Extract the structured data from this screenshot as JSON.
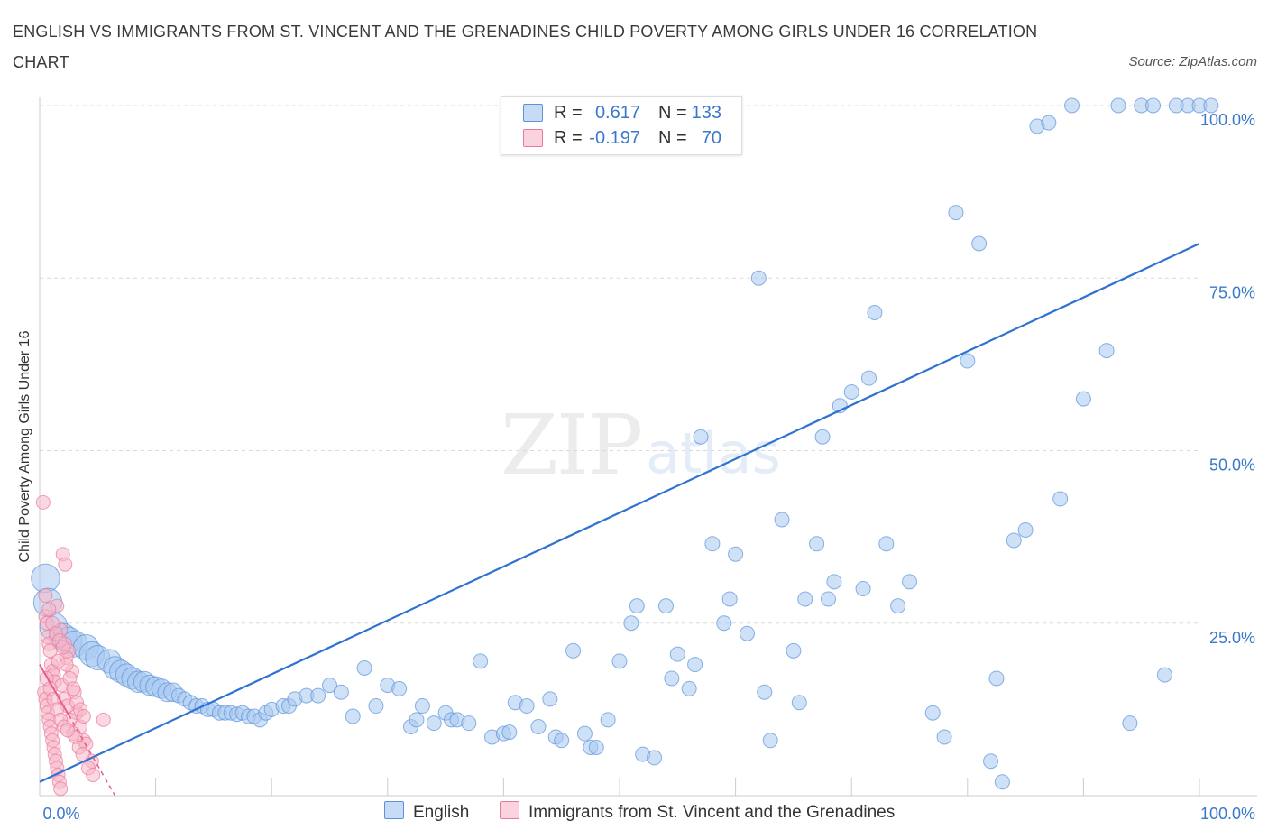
{
  "title": "ENGLISH VS IMMIGRANTS FROM ST. VINCENT AND THE GRENADINES CHILD POVERTY AMONG GIRLS UNDER 16 CORRELATION CHART",
  "source": "Source: ZipAtlas.com",
  "watermark": {
    "zip": "ZIP",
    "atlas": "atlas"
  },
  "legend": {
    "rows": [
      {
        "r_label": "R =",
        "r_value": "0.617",
        "n_label": "N =",
        "n_value": "133",
        "color": "#a8c8f0"
      },
      {
        "r_label": "R =",
        "r_value": "-0.197",
        "n_label": "N =",
        "n_value": "70",
        "color": "#f7b6c8"
      }
    ]
  },
  "bottom_legend": {
    "english": "English",
    "immigrants": "Immigrants from St. Vincent and the Grenadines"
  },
  "colors": {
    "blue_fill": "#a8c8f0",
    "blue_stroke": "#5b93d8",
    "blue_line": "#2f72d0",
    "pink_fill": "#f7b6c8",
    "pink_stroke": "#e8799a",
    "pink_line": "#e85d8a",
    "tick_text": "#3a78c9"
  },
  "chart_data": {
    "type": "scatter",
    "title": "English vs Immigrants from St. Vincent and the Grenadines Child Poverty Among Girls Under 16 Correlation Chart",
    "xlabel": "",
    "ylabel": "Child Poverty Among Girls Under 16",
    "xlim": [
      0,
      100
    ],
    "ylim": [
      0,
      100
    ],
    "x_tick_labels": [
      "0.0%",
      "100.0%"
    ],
    "y_tick_labels": [
      "100.0%",
      "75.0%",
      "50.0%",
      "25.0%"
    ],
    "y_ticks": [
      100,
      75,
      50,
      25
    ],
    "grid": true,
    "legend_position": "top-center",
    "series": [
      {
        "name": "English",
        "r": 0.617,
        "n": 133,
        "trend": [
          [
            0,
            2
          ],
          [
            100,
            80
          ]
        ],
        "points": [
          [
            0.5,
            31.5
          ],
          [
            0.7,
            28
          ],
          [
            1.2,
            24.5
          ],
          [
            2,
            23
          ],
          [
            2.5,
            22.5
          ],
          [
            3,
            22
          ],
          [
            4,
            21.5
          ],
          [
            4.5,
            20.5
          ],
          [
            5,
            20
          ],
          [
            6,
            19.5
          ],
          [
            6.5,
            18.5
          ],
          [
            7,
            18
          ],
          [
            7.5,
            17.5
          ],
          [
            8,
            17
          ],
          [
            8.5,
            16.5
          ],
          [
            9,
            16.5
          ],
          [
            9.5,
            16
          ],
          [
            10,
            15.8
          ],
          [
            10.5,
            15.5
          ],
          [
            11,
            15
          ],
          [
            11.5,
            15
          ],
          [
            12,
            14.5
          ],
          [
            12.5,
            14
          ],
          [
            13,
            13.5
          ],
          [
            13.5,
            13
          ],
          [
            14,
            13
          ],
          [
            14.5,
            12.5
          ],
          [
            15,
            12.5
          ],
          [
            15.5,
            12
          ],
          [
            16,
            12
          ],
          [
            16.5,
            12
          ],
          [
            17,
            11.8
          ],
          [
            17.5,
            12
          ],
          [
            18,
            11.5
          ],
          [
            18.5,
            11.5
          ],
          [
            19,
            11
          ],
          [
            19.5,
            12
          ],
          [
            20,
            12.5
          ],
          [
            21,
            13
          ],
          [
            21.5,
            13
          ],
          [
            22,
            14
          ],
          [
            23,
            14.5
          ],
          [
            24,
            14.5
          ],
          [
            25,
            16
          ],
          [
            26,
            15
          ],
          [
            27,
            11.5
          ],
          [
            28,
            18.5
          ],
          [
            29,
            13
          ],
          [
            30,
            16
          ],
          [
            31,
            15.5
          ],
          [
            32,
            10
          ],
          [
            32.5,
            11
          ],
          [
            33,
            13
          ],
          [
            34,
            10.5
          ],
          [
            35,
            12
          ],
          [
            35.5,
            11
          ],
          [
            36,
            11
          ],
          [
            37,
            10.5
          ],
          [
            38,
            19.5
          ],
          [
            39,
            8.5
          ],
          [
            40,
            9
          ],
          [
            40.5,
            9.2
          ],
          [
            41,
            13.5
          ],
          [
            42,
            13
          ],
          [
            43,
            10
          ],
          [
            44,
            14
          ],
          [
            44.5,
            8.5
          ],
          [
            45,
            8
          ],
          [
            46,
            21
          ],
          [
            47,
            9
          ],
          [
            47.5,
            7
          ],
          [
            48,
            7
          ],
          [
            49,
            11
          ],
          [
            50,
            19.5
          ],
          [
            51,
            25
          ],
          [
            51.5,
            27.5
          ],
          [
            52,
            6
          ],
          [
            53,
            5.5
          ],
          [
            54,
            27.5
          ],
          [
            54.5,
            17
          ],
          [
            55,
            20.5
          ],
          [
            56,
            15.5
          ],
          [
            56.5,
            19
          ],
          [
            57,
            52
          ],
          [
            58,
            36.5
          ],
          [
            59,
            25
          ],
          [
            59.5,
            28.5
          ],
          [
            60,
            35
          ],
          [
            61,
            23.5
          ],
          [
            62,
            75
          ],
          [
            62.5,
            15
          ],
          [
            63,
            8
          ],
          [
            64,
            40
          ],
          [
            65,
            21
          ],
          [
            65.5,
            13.5
          ],
          [
            66,
            28.5
          ],
          [
            67,
            36.5
          ],
          [
            67.5,
            52
          ],
          [
            68,
            28.5
          ],
          [
            68.5,
            31
          ],
          [
            69,
            56.5
          ],
          [
            70,
            58.5
          ],
          [
            71,
            30
          ],
          [
            71.5,
            60.5
          ],
          [
            72,
            70
          ],
          [
            73,
            36.5
          ],
          [
            74,
            27.5
          ],
          [
            75,
            31
          ],
          [
            77,
            12
          ],
          [
            78,
            8.5
          ],
          [
            79,
            84.5
          ],
          [
            80,
            63
          ],
          [
            81,
            80
          ],
          [
            82,
            5
          ],
          [
            82.5,
            17
          ],
          [
            83,
            2
          ],
          [
            84,
            37
          ],
          [
            85,
            38.5
          ],
          [
            86,
            97
          ],
          [
            87,
            97.5
          ],
          [
            88,
            43
          ],
          [
            89,
            100
          ],
          [
            90,
            57.5
          ],
          [
            92,
            64.5
          ],
          [
            93,
            100
          ],
          [
            94,
            10.5
          ],
          [
            95,
            100
          ],
          [
            96,
            100
          ],
          [
            97,
            17.5
          ],
          [
            98,
            100
          ],
          [
            99,
            100
          ],
          [
            100,
            100
          ],
          [
            101,
            100
          ]
        ]
      },
      {
        "name": "Immigrants from St. Vincent and the Grenadines",
        "r": -0.197,
        "n": 70,
        "trend": [
          [
            0,
            19
          ],
          [
            6.5,
            0
          ]
        ],
        "points": [
          [
            0.3,
            42.5
          ],
          [
            0.5,
            26
          ],
          [
            0.6,
            25
          ],
          [
            0.7,
            23
          ],
          [
            0.8,
            22
          ],
          [
            0.9,
            21
          ],
          [
            1,
            19
          ],
          [
            1.1,
            18
          ],
          [
            1.2,
            17.5
          ],
          [
            1.3,
            16.5
          ],
          [
            0.4,
            15
          ],
          [
            0.5,
            14
          ],
          [
            0.6,
            13
          ],
          [
            0.7,
            12
          ],
          [
            0.8,
            11
          ],
          [
            0.9,
            10
          ],
          [
            1,
            9
          ],
          [
            1.1,
            8
          ],
          [
            1.2,
            7
          ],
          [
            1.3,
            6
          ],
          [
            1.4,
            5
          ],
          [
            1.5,
            4
          ],
          [
            1.6,
            3
          ],
          [
            1.7,
            2
          ],
          [
            1.8,
            1
          ],
          [
            2,
            35
          ],
          [
            2.2,
            33.5
          ],
          [
            1.5,
            27.5
          ],
          [
            1.8,
            24
          ],
          [
            2.2,
            22
          ],
          [
            2.5,
            21
          ],
          [
            2.8,
            18
          ],
          [
            3,
            15
          ],
          [
            3.2,
            12
          ],
          [
            3.5,
            10
          ],
          [
            3.8,
            8
          ],
          [
            4,
            7.5
          ],
          [
            4.5,
            5
          ],
          [
            2.3,
            20
          ],
          [
            1.6,
            19.5
          ],
          [
            1.9,
            16
          ],
          [
            2.1,
            14
          ],
          [
            2.4,
            13
          ],
          [
            2.6,
            11
          ],
          [
            2.9,
            9
          ],
          [
            3.1,
            8.5
          ],
          [
            3.4,
            7
          ],
          [
            3.7,
            6
          ],
          [
            4.2,
            4
          ],
          [
            4.6,
            3
          ],
          [
            0.5,
            29
          ],
          [
            0.8,
            27
          ],
          [
            1.1,
            25
          ],
          [
            1.4,
            23.5
          ],
          [
            1.7,
            22.5
          ],
          [
            2,
            21.5
          ],
          [
            2.3,
            19
          ],
          [
            2.6,
            17
          ],
          [
            2.9,
            15.5
          ],
          [
            3.2,
            13.5
          ],
          [
            3.5,
            12.5
          ],
          [
            3.8,
            11.5
          ],
          [
            0.6,
            17
          ],
          [
            0.9,
            15.5
          ],
          [
            1.2,
            14
          ],
          [
            1.5,
            12.5
          ],
          [
            1.8,
            11
          ],
          [
            2.1,
            10
          ],
          [
            2.4,
            9.5
          ],
          [
            5.5,
            11
          ]
        ]
      }
    ]
  }
}
